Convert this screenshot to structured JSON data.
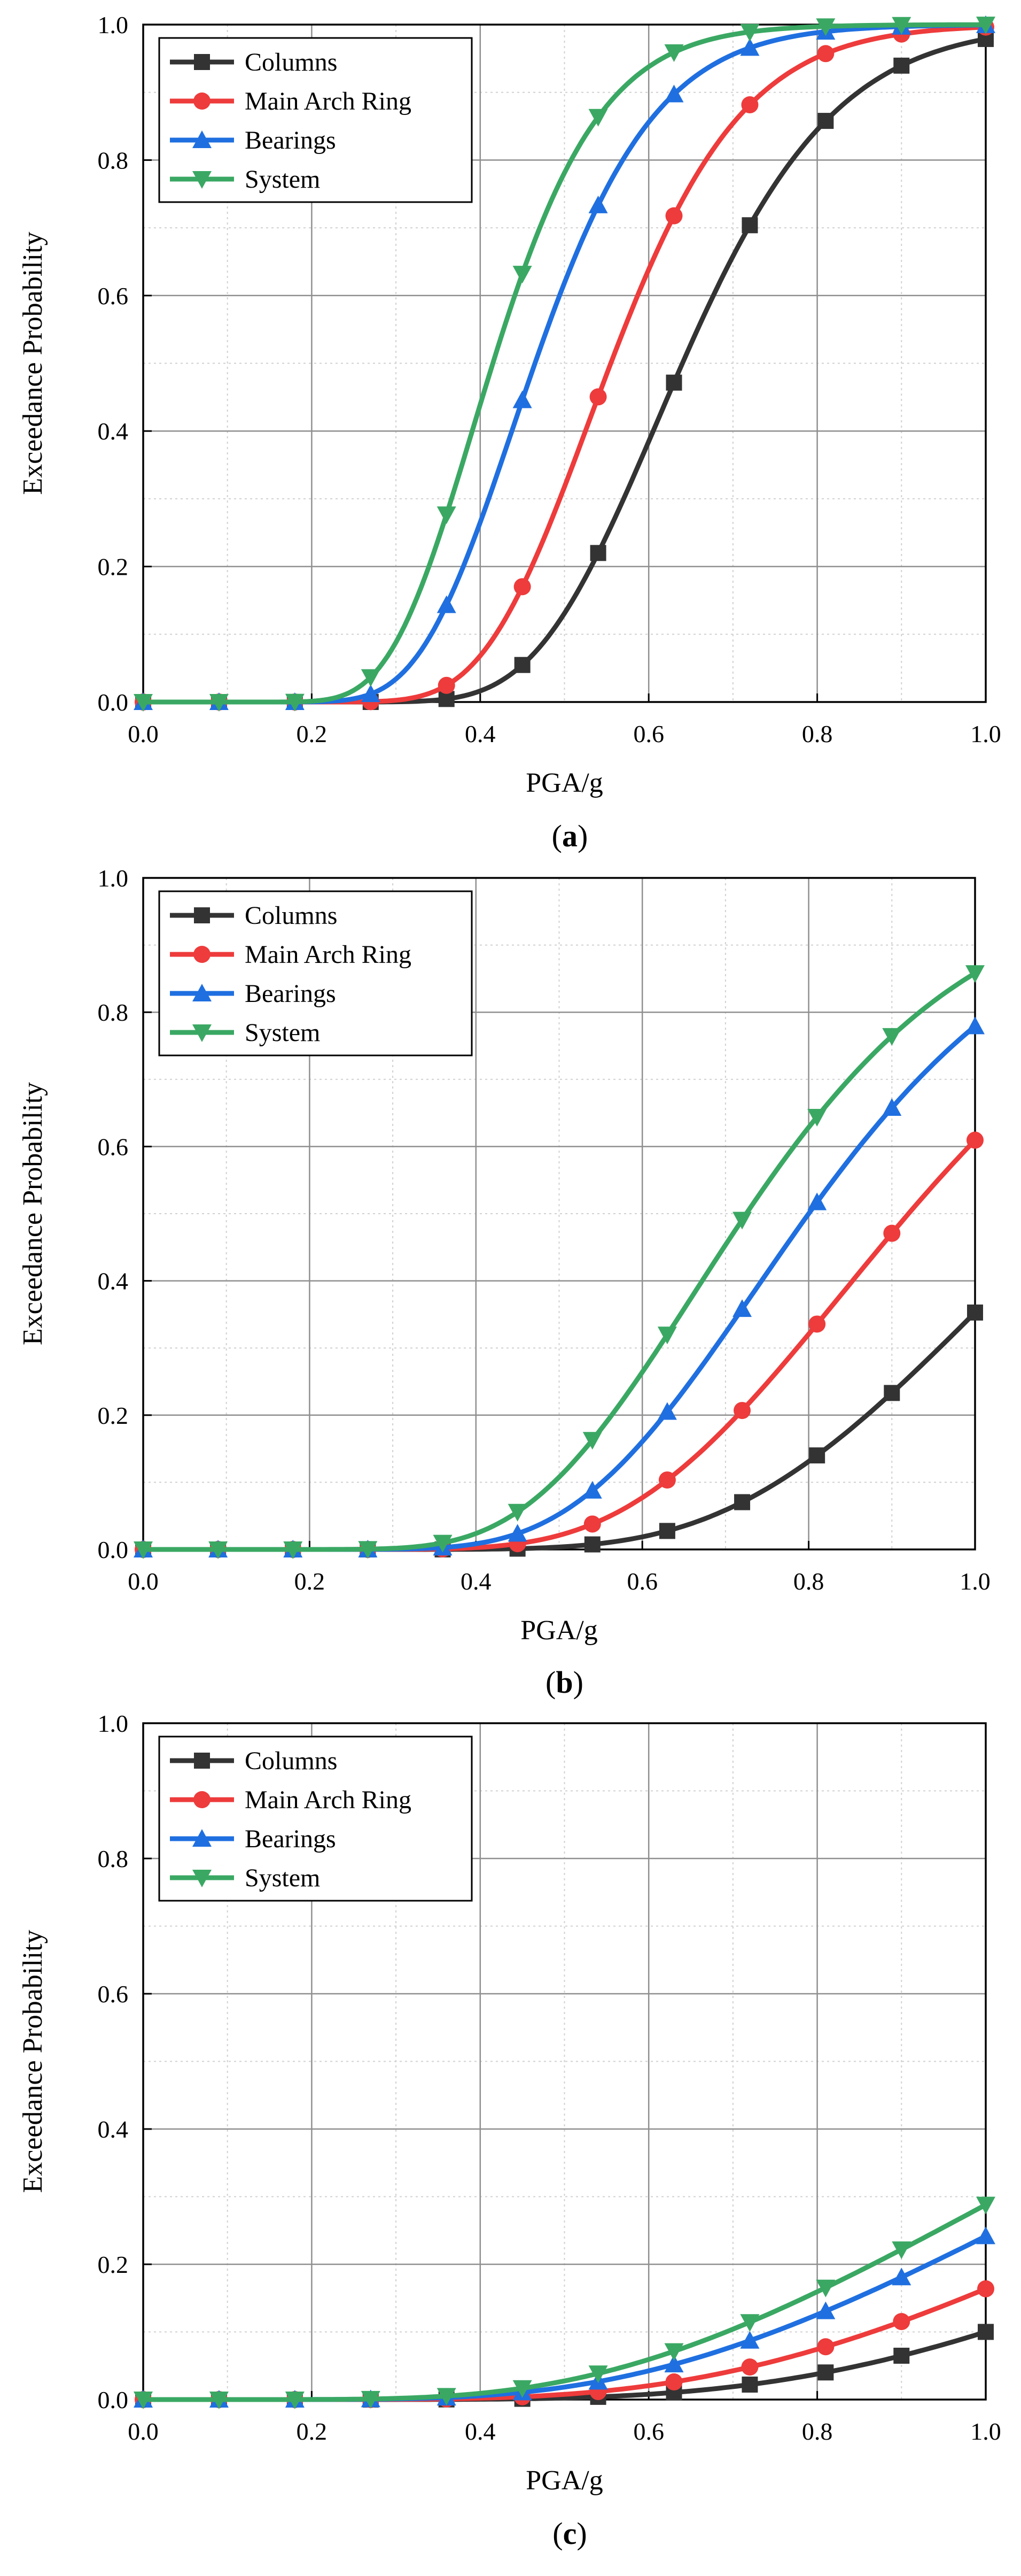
{
  "chart_data": [
    {
      "type": "line",
      "panel_label": "a",
      "xlabel": "PGA/g",
      "ylabel": "Exceedance Probability",
      "xlim": [
        0,
        1
      ],
      "ylim": [
        0,
        1
      ],
      "x_ticks": [
        "0.0",
        "0.2",
        "0.4",
        "0.6",
        "0.8",
        "1.0"
      ],
      "y_ticks": [
        "0.0",
        "0.2",
        "0.4",
        "0.6",
        "0.8",
        "1.0"
      ],
      "grid": true,
      "legend": "top-left",
      "series": [
        {
          "name": "Columns",
          "color": "#333333",
          "marker": "square",
          "median": 0.64,
          "beta": 0.22
        },
        {
          "name": "Main Arch Ring",
          "color": "#ee3b3b",
          "marker": "circle",
          "median": 0.555,
          "beta": 0.22
        },
        {
          "name": "Bearings",
          "color": "#1f6fe0",
          "marker": "triangle-up",
          "median": 0.465,
          "beta": 0.24
        },
        {
          "name": "System",
          "color": "#3aa863",
          "marker": "triangle-down",
          "median": 0.415,
          "beta": 0.24
        }
      ]
    },
    {
      "type": "line",
      "panel_label": "b",
      "xlabel": "PGA/g",
      "ylabel": "Exceedance Probability",
      "xlim": [
        0,
        1
      ],
      "ylim": [
        0,
        1
      ],
      "x_ticks": [
        "0.0",
        "0.2",
        "0.4",
        "0.6",
        "0.8",
        "1.0"
      ],
      "y_ticks": [
        "0.0",
        "0.2",
        "0.4",
        "0.6",
        "0.8",
        "1.0"
      ],
      "grid": true,
      "legend": "top-left",
      "series": [
        {
          "name": "Columns",
          "color": "#333333",
          "marker": "square",
          "median": 1.12,
          "beta": 0.3
        },
        {
          "name": "Main Arch Ring",
          "color": "#ee3b3b",
          "marker": "circle",
          "median": 0.92,
          "beta": 0.3
        },
        {
          "name": "Bearings",
          "color": "#1f6fe0",
          "marker": "triangle-up",
          "median": 0.8,
          "beta": 0.29
        },
        {
          "name": "System",
          "color": "#3aa863",
          "marker": "triangle-down",
          "median": 0.725,
          "beta": 0.3
        }
      ]
    },
    {
      "type": "line",
      "panel_label": "c",
      "xlabel": "PGA/g",
      "ylabel": "Exceedance Probability",
      "xlim": [
        0,
        1
      ],
      "ylim": [
        0,
        1
      ],
      "x_ticks": [
        "0.0",
        "0.2",
        "0.4",
        "0.6",
        "0.8",
        "1.0"
      ],
      "y_ticks": [
        "0.0",
        "0.2",
        "0.4",
        "0.6",
        "0.8",
        "1.0"
      ],
      "grid": true,
      "legend": "top-left",
      "series": [
        {
          "name": "Columns",
          "color": "#333333",
          "marker": "square",
          "median": 1.78,
          "beta": 0.45
        },
        {
          "name": "Main Arch Ring",
          "color": "#ee3b3b",
          "marker": "circle",
          "median": 1.6,
          "beta": 0.48
        },
        {
          "name": "Bearings",
          "color": "#1f6fe0",
          "marker": "triangle-up",
          "median": 1.42,
          "beta": 0.5
        },
        {
          "name": "System",
          "color": "#3aa863",
          "marker": "triangle-down",
          "median": 1.33,
          "beta": 0.51
        }
      ]
    }
  ]
}
